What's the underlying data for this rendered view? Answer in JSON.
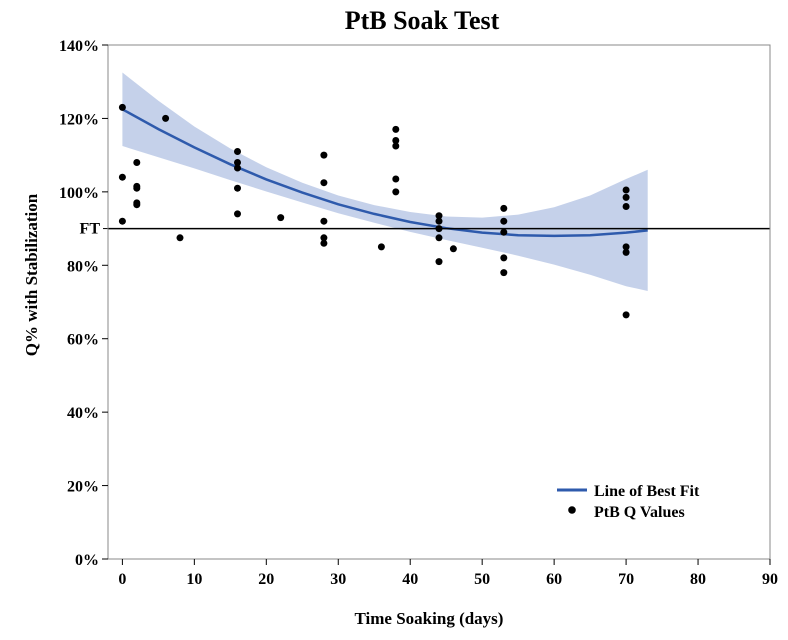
{
  "chart_data": {
    "type": "scatter",
    "title": "PtB Soak Test",
    "xlabel": "Time Soaking (days)",
    "ylabel": "Q% with Stabilization",
    "xlim": [
      -2,
      90
    ],
    "ylim": [
      0,
      140
    ],
    "x_ticks": [
      0,
      10,
      20,
      30,
      40,
      50,
      60,
      70,
      80,
      90
    ],
    "y_ticks": [
      0,
      20,
      40,
      60,
      80,
      100,
      120,
      140
    ],
    "y_tick_labels": [
      "0%",
      "20%",
      "40%",
      "60%",
      "80%",
      "100%",
      "120%",
      "140%"
    ],
    "grid": false,
    "legend_position": "bottom-right",
    "reference_line": {
      "label": "FT",
      "y": 90
    },
    "series": [
      {
        "name": "PtB Q Values",
        "kind": "points",
        "color": "#000000",
        "points": [
          [
            0,
            123
          ],
          [
            0,
            104
          ],
          [
            0,
            92
          ],
          [
            2,
            108
          ],
          [
            2,
            101.5
          ],
          [
            2,
            101
          ],
          [
            2,
            97
          ],
          [
            2,
            96.5
          ],
          [
            6,
            120
          ],
          [
            8,
            87.5
          ],
          [
            16,
            111
          ],
          [
            16,
            108
          ],
          [
            16,
            106.5
          ],
          [
            16,
            101
          ],
          [
            16,
            94
          ],
          [
            22,
            93
          ],
          [
            28,
            110
          ],
          [
            28,
            102.5
          ],
          [
            28,
            92
          ],
          [
            28,
            87.5
          ],
          [
            28,
            86
          ],
          [
            36,
            85
          ],
          [
            38,
            117
          ],
          [
            38,
            114
          ],
          [
            38,
            112.5
          ],
          [
            38,
            103.5
          ],
          [
            38,
            100
          ],
          [
            44,
            93.5
          ],
          [
            44,
            92
          ],
          [
            44,
            90
          ],
          [
            44,
            87.5
          ],
          [
            44,
            81
          ],
          [
            46,
            84.5
          ],
          [
            53,
            95.5
          ],
          [
            53,
            92
          ],
          [
            53,
            89
          ],
          [
            53,
            82
          ],
          [
            53,
            78
          ],
          [
            70,
            100.5
          ],
          [
            70,
            98.5
          ],
          [
            70,
            96
          ],
          [
            70,
            85
          ],
          [
            70,
            83.5
          ],
          [
            70,
            66.5
          ]
        ]
      },
      {
        "name": "Line of Best Fit",
        "kind": "line",
        "color": "#2e5aac",
        "x": [
          0,
          5,
          10,
          15,
          20,
          25,
          30,
          35,
          40,
          45,
          50,
          55,
          60,
          65,
          70,
          73
        ],
        "y": [
          122.5,
          117.1,
          112.1,
          107.5,
          103.4,
          99.8,
          96.6,
          94.0,
          91.8,
          90.1,
          88.9,
          88.2,
          88.0,
          88.2,
          88.9,
          89.5
        ],
        "band_upper": [
          132.5,
          124.8,
          117.8,
          111.8,
          106.7,
          102.5,
          99.0,
          96.4,
          94.5,
          93.3,
          93.0,
          93.8,
          95.8,
          99.0,
          103.5,
          106.0
        ],
        "band_lower": [
          112.5,
          109.4,
          106.4,
          103.2,
          100.1,
          97.1,
          94.2,
          91.6,
          89.1,
          86.9,
          84.8,
          82.6,
          80.2,
          77.4,
          74.3,
          73.0
        ],
        "band_color": "#9fb3dc"
      }
    ]
  }
}
